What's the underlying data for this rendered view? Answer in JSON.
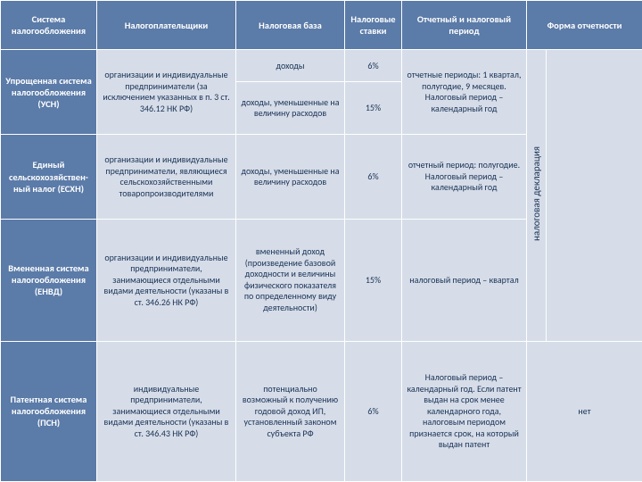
{
  "header": {
    "system": "Система налогообложения",
    "payers": "Налогоплательщики",
    "base": "Налоговая база",
    "rates": "Налоговые ставки",
    "period": "Отчетный и налоговый период",
    "form": "Форма отчетности"
  },
  "usn": {
    "name": "Упрощенная система налогообложения (УСН)",
    "payers": "организации и индивидуальные предприниматели (за исключением указанных в п. 3 ст. 346.12 НК РФ)",
    "base1": "доходы",
    "rate1": "6%",
    "base2": "доходы, уменьшенные на величину расходов",
    "rate2": "15%",
    "period": "отчетные периоды: 1 квартал, полугодие, 9 месяцев. Налоговый период – календарный год"
  },
  "eshn": {
    "name": "Единый сельскохозяйствен-ный налог (ЕСХН)",
    "payers": "организации и индивидуальные предприниматели, являющиеся сельскохозяйственными товаропроизводителями",
    "base": "доходы, уменьшенные на величину расходов",
    "rate": "6%",
    "period": "отчетный период: полугодие. Налоговый период – календарный год"
  },
  "envd": {
    "name": "Вмененная система налогообложения (ЕНВД)",
    "payers": "организации и индивидуальные предприниматели, занимающиеся отдельными видами деятельности (указаны в ст. 346.26 НК РФ)",
    "base": "вмененный доход (произведение базовой доходности и величины физического показателя по определенному виду деятельности)",
    "rate": "15%",
    "period": "налоговый период – квартал"
  },
  "psn": {
    "name": "Патентная система налогообложения (ПСН)",
    "payers": "индивидуальные предприниматели, занимающиеся отдельными видами деятельности (указаны в ст. 346.43 НК РФ)",
    "base": "потенциально возможный к получению годовой доход ИП, установленный законом субъекта РФ",
    "rate": "6%",
    "period": "Налоговый период – календарный год. Если патент выдан на срок менее календарного года, налоговым периодом признается срок, на который выдан патент",
    "form": "нет"
  },
  "vertlabel": "налоговая декларация",
  "colors": {
    "header_bg": "#5b7ba8",
    "header_text": "#ffffff",
    "body_bg": "#d6dde8",
    "body_text": "#1a3257",
    "border": "#ffffff"
  }
}
